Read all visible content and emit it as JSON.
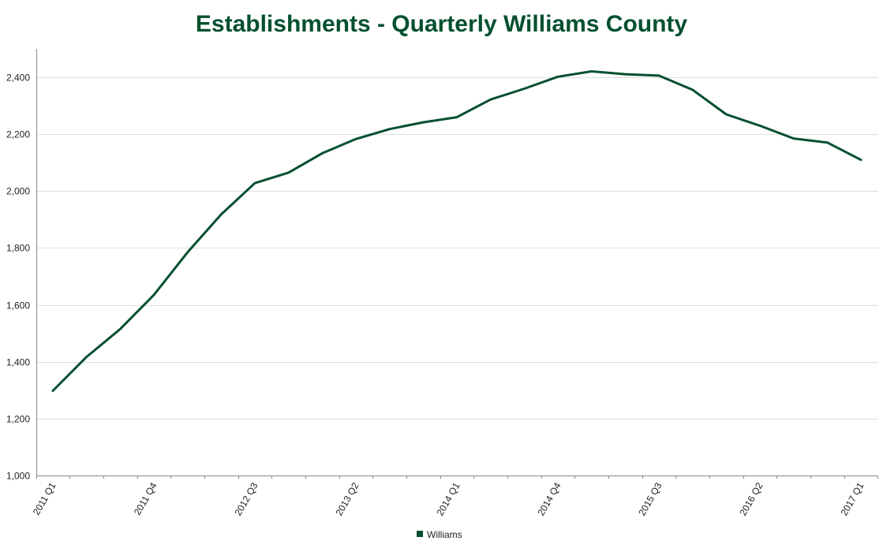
{
  "chart_data": {
    "type": "line",
    "title": "Establishments - Quarterly Williams County",
    "xlabel": "",
    "ylabel": "",
    "ylim": [
      1000,
      2500
    ],
    "yticks": [
      1000,
      1200,
      1400,
      1600,
      1800,
      2000,
      2200,
      2400
    ],
    "ytick_labels": [
      "1,000",
      "1,200",
      "1,400",
      "1,600",
      "1,800",
      "2,000",
      "2,200",
      "2,400"
    ],
    "grid": "horizontal",
    "legend": "bottom-center",
    "x": [
      "2011 Q1",
      "2011 Q2",
      "2011 Q3",
      "2011 Q4",
      "2012 Q1",
      "2012 Q2",
      "2012 Q3",
      "2012 Q4",
      "2013 Q1",
      "2013 Q2",
      "2013 Q3",
      "2013 Q4",
      "2014 Q1",
      "2014 Q2",
      "2014 Q3",
      "2014 Q4",
      "2015 Q1",
      "2015 Q2",
      "2015 Q3",
      "2015 Q4",
      "2016 Q1",
      "2016 Q2",
      "2016 Q3",
      "2016 Q4",
      "2017 Q1"
    ],
    "xtick_labels_shown": [
      "2011 Q1",
      "2011 Q4",
      "2012 Q3",
      "2013 Q2",
      "2014 Q1",
      "2014 Q4",
      "2015 Q3",
      "2016 Q2",
      "2017 Q1"
    ],
    "series": [
      {
        "name": "Williams",
        "color": "#04502f",
        "values": [
          1298,
          1417,
          1515,
          1635,
          1785,
          1918,
          2028,
          2065,
          2133,
          2183,
          2218,
          2242,
          2260,
          2322,
          2360,
          2402,
          2421,
          2411,
          2406,
          2356,
          2270,
          2230,
          2185,
          2171,
          2110
        ]
      }
    ]
  }
}
